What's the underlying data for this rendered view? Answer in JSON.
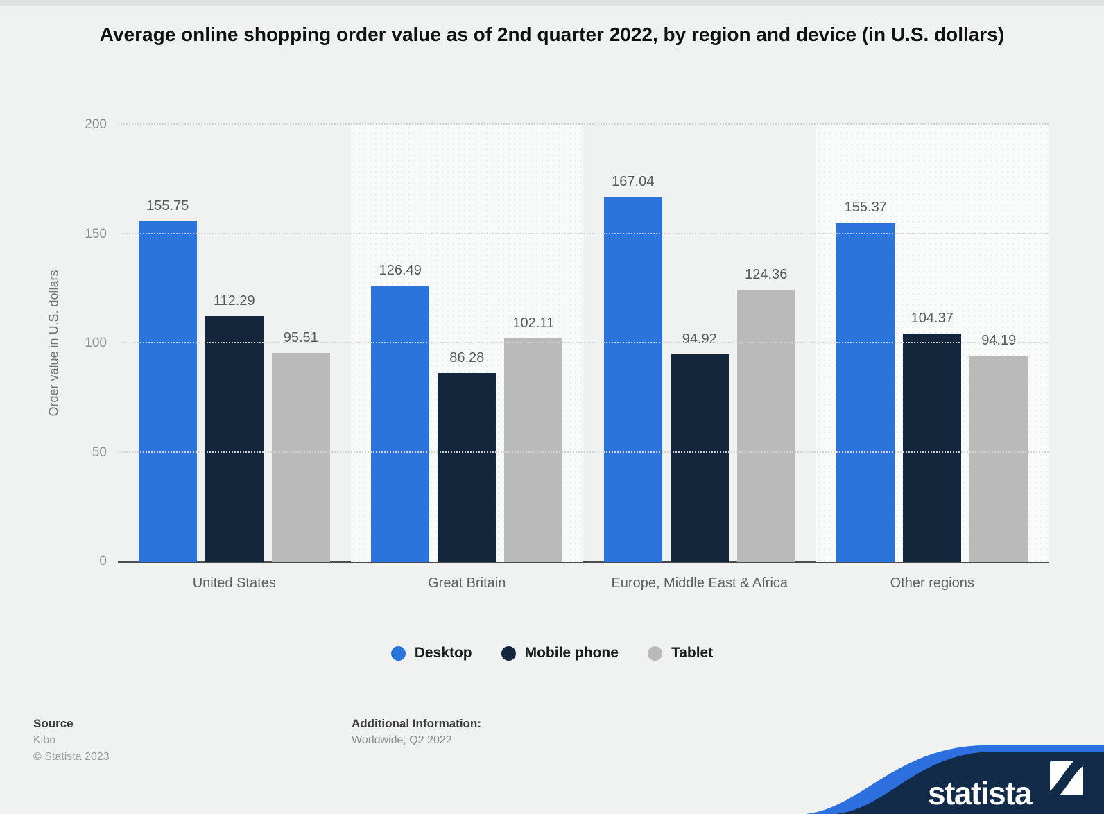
{
  "title": "Average online shopping order value as of 2nd quarter 2022, by region and device (in U.S. dollars)",
  "chart_data": {
    "type": "bar",
    "categories": [
      "United States",
      "Great Britain",
      "Europe, Middle East & Africa",
      "Other regions"
    ],
    "series": [
      {
        "name": "Desktop",
        "color": "#2b74dc",
        "values": [
          155.75,
          126.49,
          167.04,
          155.37
        ]
      },
      {
        "name": "Mobile phone",
        "color": "#13263c",
        "values": [
          112.29,
          86.28,
          94.92,
          104.37
        ]
      },
      {
        "name": "Tablet",
        "color": "#bababa",
        "values": [
          95.51,
          102.11,
          124.36,
          94.19
        ]
      }
    ],
    "ylabel": "Order value in U.S. dollars",
    "ylim": [
      0,
      200
    ],
    "yticks": [
      0,
      50,
      100,
      150,
      200
    ],
    "grid": "horizontal-dotted",
    "legend_position": "bottom",
    "band_shading": "alternating columns"
  },
  "footer": {
    "source_label": "Source",
    "source_value": "Kibo",
    "copyright": "© Statista 2023",
    "additional_info_label": "Additional Information:",
    "additional_info_value": "Worldwide; Q2 2022"
  },
  "branding": {
    "logo_text": "statista",
    "wave_navy": "#112b49",
    "wave_blue": "#2e6fe0"
  }
}
